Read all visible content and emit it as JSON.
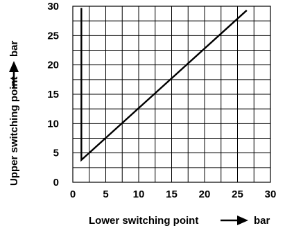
{
  "chart_data": {
    "type": "line",
    "xlabel": "Lower switching point",
    "xunit": "bar",
    "ylabel": "Upper switching point",
    "yunit": "bar",
    "xlim": [
      0,
      30
    ],
    "ylim": [
      0,
      30
    ],
    "xticks": [
      "0",
      "5",
      "10",
      "15",
      "20",
      "25",
      "30"
    ],
    "yticks": [
      "0",
      "5",
      "10",
      "15",
      "20",
      "25",
      "30"
    ],
    "grid": true,
    "grid_step": 2.5,
    "series": [
      {
        "x": [
          1.3,
          1.3,
          26.4
        ],
        "y": [
          29.7,
          3.8,
          29.3
        ]
      }
    ]
  }
}
